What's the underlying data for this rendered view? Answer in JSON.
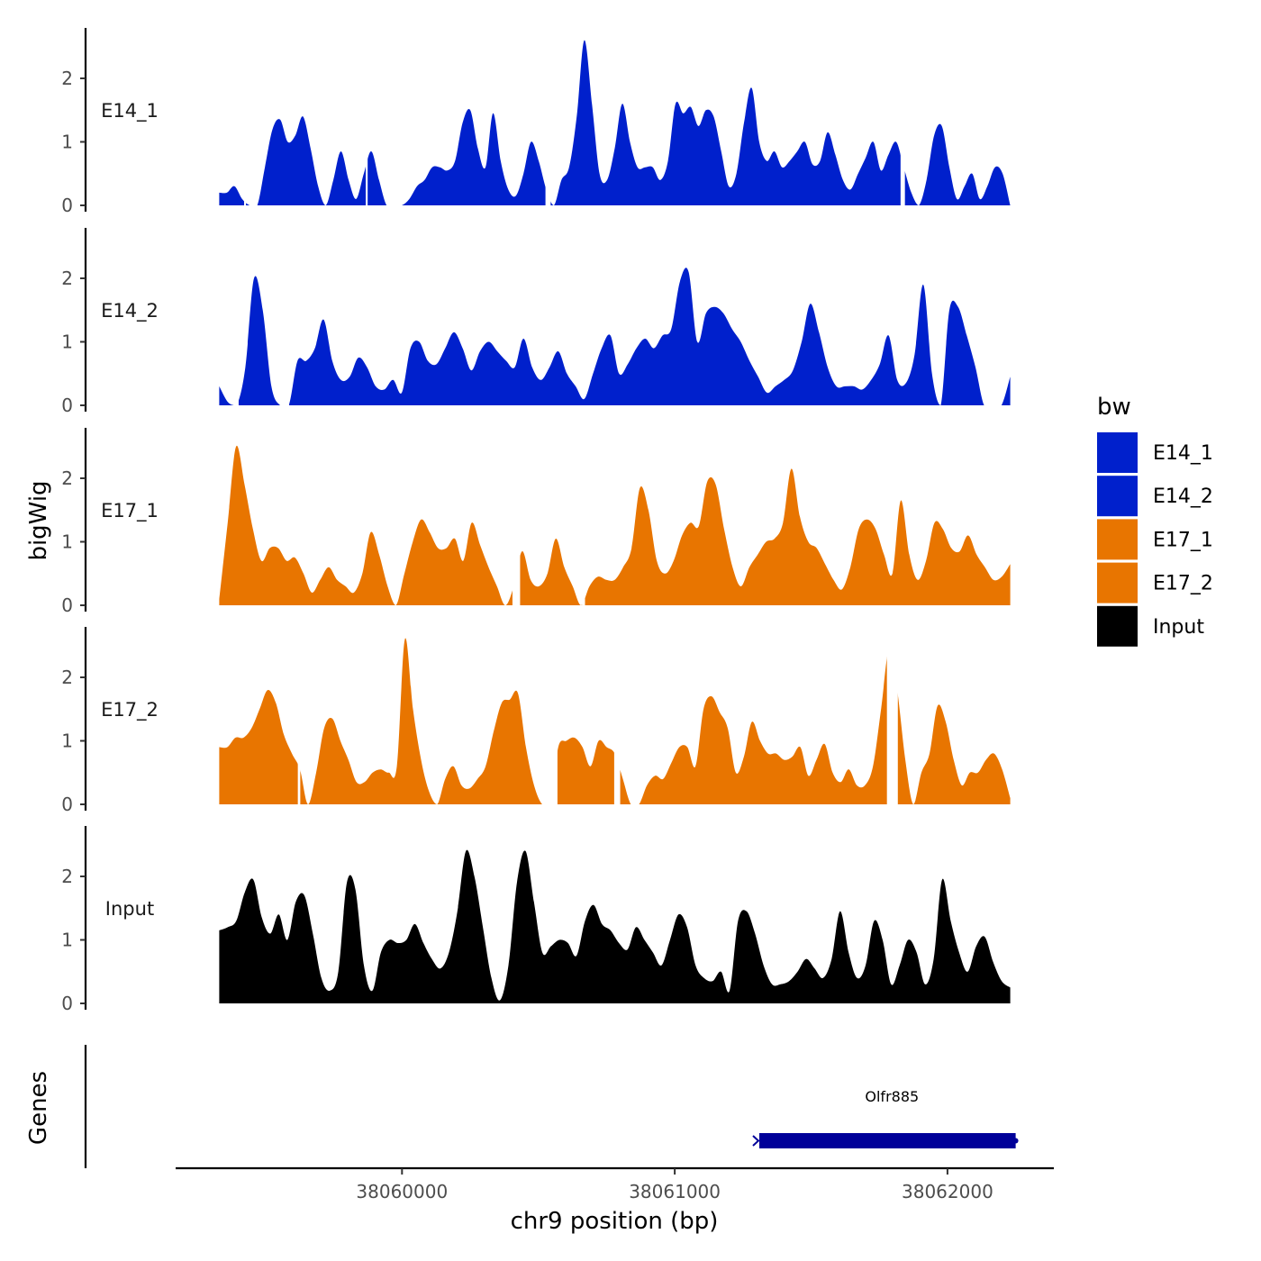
{
  "chart_data": {
    "type": "area",
    "title": "",
    "xlabel": "chr9 position (bp)",
    "ylabel": "bigWig",
    "gene_track_label": "Genes",
    "x_range": [
      38059330,
      38062230
    ],
    "x_lim": [
      38059170,
      38062390
    ],
    "x_ticks": [
      38060000,
      38061000,
      38062000
    ],
    "x_tick_labels": [
      "38060000",
      "38061000",
      "38062000"
    ],
    "y_ticks": [
      0,
      1,
      2
    ],
    "ylim": [
      0,
      2.75
    ],
    "legend": {
      "title": "bw",
      "position": "right",
      "entries": [
        {
          "label": "E14_1",
          "color": "#0020CC"
        },
        {
          "label": "E14_2",
          "color": "#0020CC"
        },
        {
          "label": "E17_1",
          "color": "#E87500"
        },
        {
          "label": "E17_2",
          "color": "#E87500"
        },
        {
          "label": "Input",
          "color": "#000000"
        }
      ]
    },
    "series": [
      {
        "name": "E14_1",
        "color": "#0020CC",
        "values": [
          0.2,
          0.2,
          0.3,
          0.1,
          0,
          0,
          0.6,
          1.2,
          1.35,
          1.0,
          1.1,
          1.4,
          0.9,
          0.3,
          0,
          0.4,
          0.85,
          0.4,
          0.1,
          0.5,
          0.85,
          0.4,
          0,
          0,
          0,
          0.1,
          0.3,
          0.4,
          0.6,
          0.6,
          0.55,
          0.7,
          1.3,
          1.5,
          0.9,
          0.6,
          1.45,
          0.7,
          0.25,
          0.15,
          0.5,
          1.0,
          0.7,
          0.25,
          0,
          0.4,
          0.6,
          1.4,
          2.6,
          1.6,
          0.5,
          0.4,
          0.9,
          1.6,
          1.0,
          0.6,
          0.6,
          0.6,
          0.4,
          0.7,
          1.6,
          1.45,
          1.55,
          1.25,
          1.5,
          1.4,
          0.85,
          0.3,
          0.5,
          1.3,
          1.85,
          1.0,
          0.7,
          0.85,
          0.6,
          0.7,
          0.85,
          1.0,
          0.65,
          0.7,
          1.15,
          0.8,
          0.4,
          0.25,
          0.5,
          0.75,
          1.0,
          0.55,
          0.8,
          1.0,
          0.6,
          0.2,
          0,
          0.4,
          1.1,
          1.25,
          0.6,
          0.1,
          0.3,
          0.5,
          0.1,
          0.3,
          0.6,
          0.5,
          0
        ],
        "gaps": [
          [
            38059421,
            38059428
          ],
          [
            38059867,
            38059874
          ],
          [
            38060526,
            38060545
          ],
          [
            38061828,
            38061844
          ]
        ]
      },
      {
        "name": "E14_2",
        "color": "#0020CC",
        "values": [
          0.3,
          0.05,
          0,
          0.6,
          2.0,
          1.5,
          0.3,
          0,
          0,
          0.7,
          0.7,
          0.9,
          1.35,
          0.7,
          0.4,
          0.45,
          0.75,
          0.6,
          0.3,
          0.25,
          0.4,
          0.2,
          0.9,
          1.0,
          0.7,
          0.65,
          0.9,
          1.15,
          0.9,
          0.55,
          0.85,
          1.0,
          0.85,
          0.7,
          0.6,
          1.05,
          0.6,
          0.4,
          0.6,
          0.85,
          0.5,
          0.3,
          0.1,
          0.5,
          0.9,
          1.1,
          0.5,
          0.65,
          0.9,
          1.05,
          0.9,
          1.1,
          1.2,
          1.95,
          2.1,
          1.0,
          1.45,
          1.55,
          1.45,
          1.2,
          1.0,
          0.7,
          0.45,
          0.2,
          0.3,
          0.4,
          0.55,
          1.0,
          1.6,
          1.15,
          0.6,
          0.3,
          0.3,
          0.3,
          0.25,
          0.4,
          0.65,
          1.1,
          0.4,
          0.35,
          0.8,
          1.9,
          0.5,
          0,
          1.5,
          1.55,
          1.1,
          0.6,
          0.0,
          0,
          0,
          0.45
        ],
        "gaps": [
          [
            38059382,
            38059401
          ],
          [
            38059558,
            38059586
          ],
          [
            38062140,
            38062195
          ]
        ]
      },
      {
        "name": "E17_1",
        "color": "#E87500",
        "values": [
          0.1,
          1.3,
          2.5,
          1.9,
          1.2,
          0.7,
          0.9,
          0.9,
          0.7,
          0.75,
          0.5,
          0.2,
          0.4,
          0.6,
          0.4,
          0.3,
          0.2,
          0.5,
          1.15,
          0.8,
          0.3,
          0,
          0.5,
          1.0,
          1.35,
          1.15,
          0.9,
          0.9,
          1.05,
          0.7,
          1.3,
          0.95,
          0.6,
          0.3,
          0,
          0.3,
          0.85,
          0.4,
          0.3,
          0.5,
          1.05,
          0.6,
          0.3,
          0,
          0.3,
          0.45,
          0.4,
          0.4,
          0.6,
          0.9,
          1.85,
          1.5,
          0.7,
          0.5,
          0.7,
          1.1,
          1.3,
          1.25,
          1.95,
          1.9,
          1.2,
          0.6,
          0.3,
          0.6,
          0.8,
          1.0,
          1.05,
          1.3,
          2.15,
          1.4,
          1.0,
          0.9,
          0.65,
          0.4,
          0.25,
          0.6,
          1.2,
          1.35,
          1.2,
          0.8,
          0.5,
          1.65,
          0.8,
          0.4,
          0.7,
          1.3,
          1.2,
          0.9,
          0.85,
          1.1,
          0.8,
          0.6,
          0.4,
          0.45,
          0.65
        ],
        "gaps": [
          [
            38060405,
            38060433
          ],
          [
            38060660,
            38060671
          ]
        ]
      },
      {
        "name": "E17_2",
        "color": "#E87500",
        "values": [
          0.9,
          0.9,
          1.05,
          1.05,
          1.2,
          1.5,
          1.8,
          1.6,
          1.1,
          0.8,
          0.55,
          0,
          0.5,
          1.2,
          1.35,
          1.0,
          0.7,
          0.35,
          0.35,
          0.5,
          0.55,
          0.5,
          0.6,
          2.6,
          1.5,
          0.7,
          0.2,
          0,
          0.4,
          0.6,
          0.3,
          0.25,
          0.4,
          0.6,
          1.15,
          1.6,
          1.65,
          1.75,
          0.9,
          0.3,
          0,
          0,
          0.9,
          1.0,
          1.05,
          0.9,
          0.6,
          1.0,
          0.9,
          0.8,
          0.4,
          0,
          0,
          0.3,
          0.45,
          0.4,
          0.65,
          0.9,
          0.9,
          0.6,
          1.5,
          1.7,
          1.45,
          1.2,
          0.5,
          0.75,
          1.3,
          1.0,
          0.8,
          0.8,
          0.7,
          0.75,
          0.9,
          0.45,
          0.7,
          0.95,
          0.5,
          0.35,
          0.55,
          0.3,
          0.3,
          0.6,
          1.5,
          2.45,
          1.8,
          0.7,
          0,
          0.5,
          0.8,
          1.55,
          1.3,
          0.7,
          0.3,
          0.5,
          0.5,
          0.7,
          0.8,
          0.55,
          0.1
        ],
        "gaps": [
          [
            38059618,
            38059627
          ],
          [
            38060530,
            38060570
          ],
          [
            38060778,
            38060800
          ],
          [
            38061778,
            38061818
          ]
        ]
      },
      {
        "name": "Input",
        "color": "#000000",
        "values": [
          1.15,
          1.2,
          1.3,
          1.75,
          1.95,
          1.35,
          1.1,
          1.4,
          1.0,
          1.6,
          1.7,
          1.1,
          0.4,
          0.2,
          0.5,
          1.9,
          1.8,
          0.6,
          0.2,
          0.8,
          1.0,
          0.95,
          1.0,
          1.25,
          0.95,
          0.7,
          0.55,
          0.8,
          1.45,
          2.4,
          2.0,
          1.2,
          0.4,
          0.05,
          0.6,
          1.9,
          2.4,
          1.6,
          0.8,
          0.9,
          1.0,
          0.95,
          0.75,
          1.3,
          1.55,
          1.25,
          1.15,
          0.95,
          0.85,
          1.2,
          1.0,
          0.8,
          0.6,
          1.0,
          1.4,
          1.2,
          0.6,
          0.4,
          0.35,
          0.5,
          0.2,
          1.3,
          1.45,
          1.1,
          0.6,
          0.3,
          0.3,
          0.35,
          0.5,
          0.7,
          0.55,
          0.4,
          0.7,
          1.45,
          0.8,
          0.4,
          0.6,
          1.3,
          1.0,
          0.3,
          0.6,
          1.0,
          0.8,
          0.3,
          0.7,
          1.95,
          1.3,
          0.8,
          0.5,
          0.9,
          1.05,
          0.65,
          0.35,
          0.25
        ],
        "gaps": []
      }
    ],
    "genes": [
      {
        "name": "Olfr885",
        "start": 38061310,
        "end": 38062250,
        "strand": "-",
        "color": "#000099"
      }
    ]
  }
}
